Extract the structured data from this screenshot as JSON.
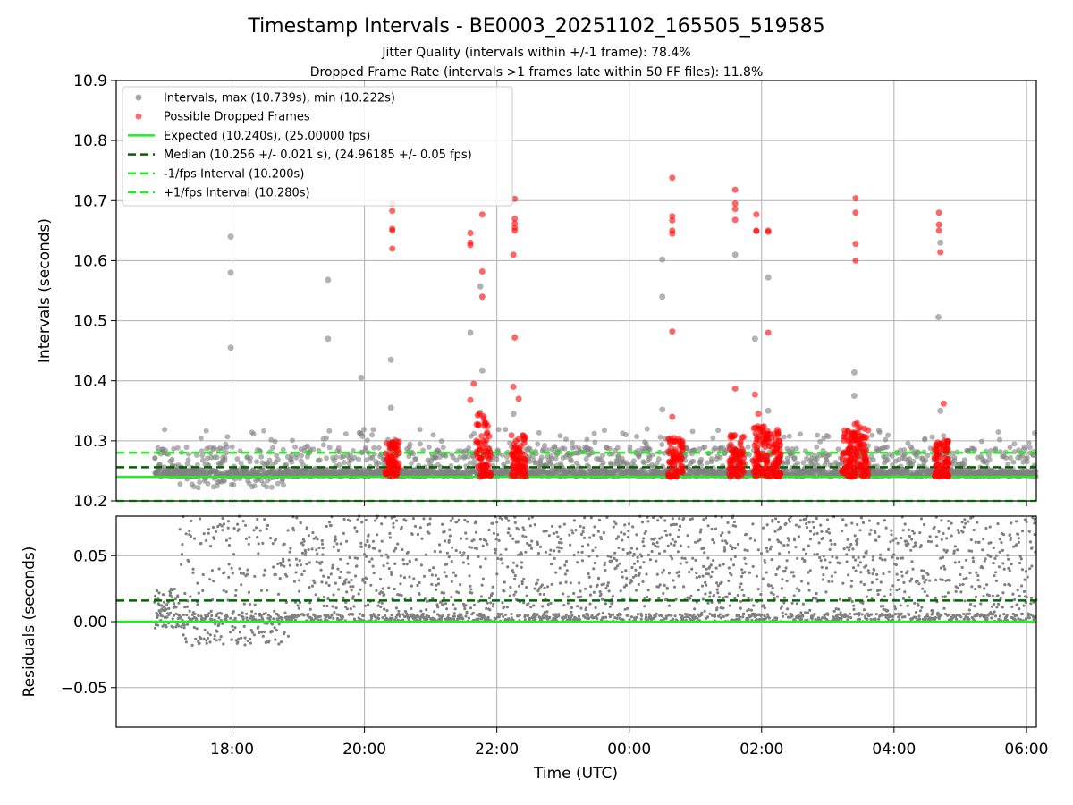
{
  "chart_data": [
    {
      "type": "scatter",
      "title": "Timestamp Intervals - BE0003_20251102_165505_519585",
      "subtitle_lines": [
        "Jitter Quality (intervals within +/-1 frame): 78.4%",
        "Dropped Frame Rate (intervals >1 frames late within 50 FF files): 11.8%"
      ],
      "ylabel": "Intervals (seconds)",
      "ylim": [
        10.2,
        10.9
      ],
      "xlim": [
        16.25,
        30.15
      ],
      "y_ticks": [
        10.2,
        10.3,
        10.4,
        10.5,
        10.6,
        10.7,
        10.8,
        10.9
      ],
      "y_tick_labels": [
        "10.2",
        "10.3",
        "10.4",
        "10.5",
        "10.6",
        "10.7",
        "10.8",
        "10.9"
      ],
      "grid": true,
      "legend_position": "upper-left",
      "colors": {
        "intervals": "#808080",
        "dropped": "#ff0000",
        "expected": "#22ee22",
        "median": "#006400",
        "fps_band": "#22ee22"
      },
      "legend": [
        {
          "label": "Intervals, max (10.739s), min (10.222s)",
          "kind": "dot",
          "color": "#999999"
        },
        {
          "label": "Possible Dropped Frames",
          "kind": "dot",
          "color": "#ff5555"
        },
        {
          "label": "Expected (10.240s), (25.00000 fps)",
          "kind": "solid",
          "color": "#22ee22"
        },
        {
          "label": "Median (10.256 +/- 0.021 s), (24.96185 +/- 0.05 fps)",
          "kind": "dash",
          "color": "#006400"
        },
        {
          "label": "-1/fps Interval (10.200s)",
          "kind": "dash",
          "color": "#22ee22"
        },
        {
          "label": "+1/fps Interval (10.280s)",
          "kind": "dash",
          "color": "#22ee22"
        }
      ],
      "reference_lines": {
        "expected": 10.24,
        "median": 10.256,
        "minus_fps": 10.2,
        "plus_fps": 10.28
      },
      "interval_outliers": [
        {
          "x": 17.98,
          "y": 10.64
        },
        {
          "x": 17.98,
          "y": 10.58
        },
        {
          "x": 17.98,
          "y": 10.455
        },
        {
          "x": 19.45,
          "y": 10.568
        },
        {
          "x": 19.45,
          "y": 10.47
        },
        {
          "x": 19.95,
          "y": 10.405
        },
        {
          "x": 20.4,
          "y": 10.435
        },
        {
          "x": 20.4,
          "y": 10.355
        },
        {
          "x": 21.6,
          "y": 10.48
        },
        {
          "x": 21.75,
          "y": 10.557
        },
        {
          "x": 21.78,
          "y": 10.417
        },
        {
          "x": 21.75,
          "y": 10.347
        },
        {
          "x": 22.25,
          "y": 10.345
        },
        {
          "x": 24.5,
          "y": 10.602
        },
        {
          "x": 24.5,
          "y": 10.54
        },
        {
          "x": 24.5,
          "y": 10.352
        },
        {
          "x": 25.6,
          "y": 10.61
        },
        {
          "x": 25.9,
          "y": 10.47
        },
        {
          "x": 26.1,
          "y": 10.572
        },
        {
          "x": 26.1,
          "y": 10.35
        },
        {
          "x": 27.4,
          "y": 10.414
        },
        {
          "x": 27.4,
          "y": 10.375
        },
        {
          "x": 28.7,
          "y": 10.63
        },
        {
          "x": 28.67,
          "y": 10.506
        },
        {
          "x": 28.7,
          "y": 10.35
        }
      ],
      "dropped_frames": [
        {
          "x": 20.42,
          "y": 10.695
        },
        {
          "x": 20.42,
          "y": 10.683
        },
        {
          "x": 20.42,
          "y": 10.653
        },
        {
          "x": 20.42,
          "y": 10.65
        },
        {
          "x": 20.42,
          "y": 10.62
        },
        {
          "x": 21.6,
          "y": 10.646
        },
        {
          "x": 21.6,
          "y": 10.63
        },
        {
          "x": 21.6,
          "y": 10.626
        },
        {
          "x": 21.78,
          "y": 10.677
        },
        {
          "x": 21.78,
          "y": 10.582
        },
        {
          "x": 21.78,
          "y": 10.54
        },
        {
          "x": 21.6,
          "y": 10.368
        },
        {
          "x": 21.65,
          "y": 10.395
        },
        {
          "x": 22.27,
          "y": 10.703
        },
        {
          "x": 22.27,
          "y": 10.67
        },
        {
          "x": 22.27,
          "y": 10.662
        },
        {
          "x": 22.27,
          "y": 10.655
        },
        {
          "x": 22.27,
          "y": 10.65
        },
        {
          "x": 22.25,
          "y": 10.61
        },
        {
          "x": 22.27,
          "y": 10.472
        },
        {
          "x": 22.25,
          "y": 10.39
        },
        {
          "x": 22.33,
          "y": 10.37
        },
        {
          "x": 24.65,
          "y": 10.738
        },
        {
          "x": 24.65,
          "y": 10.674
        },
        {
          "x": 24.65,
          "y": 10.667
        },
        {
          "x": 24.65,
          "y": 10.65
        },
        {
          "x": 24.65,
          "y": 10.645
        },
        {
          "x": 24.65,
          "y": 10.482
        },
        {
          "x": 24.65,
          "y": 10.34
        },
        {
          "x": 25.6,
          "y": 10.718
        },
        {
          "x": 25.6,
          "y": 10.695
        },
        {
          "x": 25.6,
          "y": 10.686
        },
        {
          "x": 25.6,
          "y": 10.668
        },
        {
          "x": 25.6,
          "y": 10.387
        },
        {
          "x": 25.92,
          "y": 10.677
        },
        {
          "x": 25.92,
          "y": 10.65
        },
        {
          "x": 25.92,
          "y": 10.649
        },
        {
          "x": 25.9,
          "y": 10.377
        },
        {
          "x": 25.95,
          "y": 10.345
        },
        {
          "x": 26.1,
          "y": 10.65
        },
        {
          "x": 26.1,
          "y": 10.648
        },
        {
          "x": 26.1,
          "y": 10.48
        },
        {
          "x": 27.42,
          "y": 10.704
        },
        {
          "x": 27.42,
          "y": 10.68
        },
        {
          "x": 27.42,
          "y": 10.628
        },
        {
          "x": 27.42,
          "y": 10.6
        },
        {
          "x": 28.68,
          "y": 10.68
        },
        {
          "x": 28.68,
          "y": 10.66
        },
        {
          "x": 28.68,
          "y": 10.65
        },
        {
          "x": 28.7,
          "y": 10.614
        },
        {
          "x": 28.75,
          "y": 10.362
        }
      ],
      "dropped_frame_clusters": [
        {
          "x": 20.42,
          "y_range": [
            10.24,
            10.3
          ]
        },
        {
          "x": 21.8,
          "y_range": [
            10.24,
            10.345
          ]
        },
        {
          "x": 22.33,
          "y_range": [
            10.24,
            10.31
          ]
        },
        {
          "x": 24.7,
          "y_range": [
            10.24,
            10.305
          ]
        },
        {
          "x": 25.62,
          "y_range": [
            10.24,
            10.31
          ]
        },
        {
          "x": 25.98,
          "y_range": [
            10.24,
            10.325
          ]
        },
        {
          "x": 26.18,
          "y_range": [
            10.24,
            10.32
          ]
        },
        {
          "x": 27.32,
          "y_range": [
            10.24,
            10.32
          ]
        },
        {
          "x": 27.5,
          "y_range": [
            10.24,
            10.33
          ]
        },
        {
          "x": 28.72,
          "y_range": [
            10.24,
            10.3
          ]
        }
      ],
      "interval_band": {
        "x_range": [
          16.83,
          30.15
        ],
        "y_range": [
          10.222,
          10.32
        ]
      }
    },
    {
      "type": "scatter",
      "xlabel": "Time (UTC)",
      "ylabel": "Residuals (seconds)",
      "ylim": [
        -0.08,
        0.08
      ],
      "xlim": [
        16.25,
        30.15
      ],
      "y_ticks": [
        -0.05,
        0.0,
        0.05
      ],
      "y_tick_labels": [
        "−0.05",
        "0.00",
        "0.05"
      ],
      "x_ticks": [
        18,
        20,
        22,
        24,
        26,
        28,
        30
      ],
      "x_tick_labels": [
        "18:00",
        "20:00",
        "22:00",
        "00:00",
        "02:00",
        "04:00",
        "06:00"
      ],
      "grid": true,
      "reference_lines": {
        "zero": 0.0,
        "median_offset": 0.016
      },
      "residual_range": {
        "x_range": [
          16.83,
          30.15
        ],
        "y_range": [
          -0.018,
          0.08
        ]
      }
    }
  ]
}
